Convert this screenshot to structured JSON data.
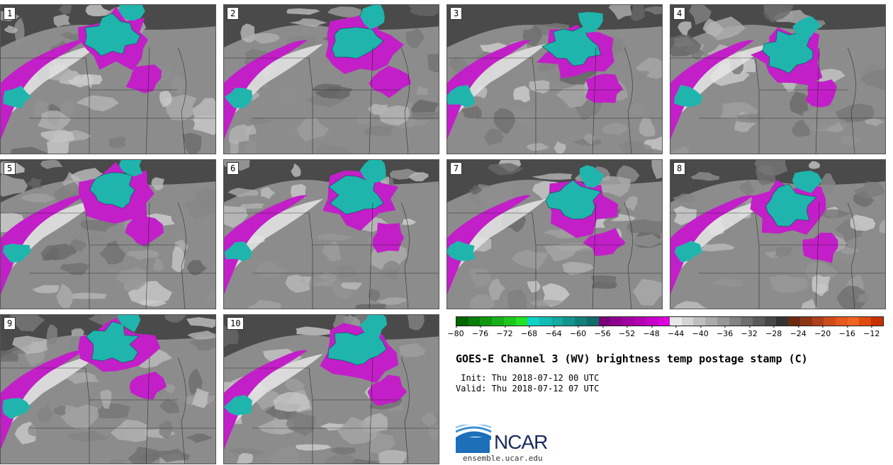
{
  "title": "GOES-E Channel 3 (WV) brightness temp postage stamp (C)",
  "init": " Init: Thu 2018-07-12 00 UTC",
  "valid": "Valid: Thu 2018-07-12 07 UTC",
  "logo_text": "NCAR",
  "logo_url": "ensemble.ucar.edu",
  "panels": [
    {
      "label": "1"
    },
    {
      "label": "2"
    },
    {
      "label": "3"
    },
    {
      "label": "4"
    },
    {
      "label": "5"
    },
    {
      "label": "6"
    },
    {
      "label": "7"
    },
    {
      "label": "8"
    },
    {
      "label": "9"
    },
    {
      "label": "10"
    }
  ],
  "colorbar": {
    "colors": [
      "#006400",
      "#0b7d0b",
      "#119611",
      "#17af17",
      "#1dc81d",
      "#23e123",
      "#0fd2c8",
      "#12bcb6",
      "#14a8a2",
      "#14948f",
      "#137f7b",
      "#116b68",
      "#7a007a",
      "#8d008d",
      "#a000a0",
      "#b300b3",
      "#c600c6",
      "#d900d9",
      "#e8e8e8",
      "#d4d4d4",
      "#bfbfbf",
      "#ababab",
      "#979797",
      "#838383",
      "#6f6f6f",
      "#5b5b5b",
      "#474747",
      "#333333",
      "#6b2a10",
      "#8c3515",
      "#ad4119",
      "#cc4c1c",
      "#e5581e",
      "#f06422",
      "#e04a10",
      "#c83000"
    ],
    "ticks": [
      "−80",
      "−76",
      "−72",
      "−68",
      "−64",
      "−60",
      "−56",
      "−52",
      "−48",
      "−44",
      "−40",
      "−36",
      "−32",
      "−28",
      "−24",
      "−20",
      "−16",
      "−12"
    ],
    "min": -80,
    "max": -10
  },
  "colors": {
    "cyan": "#1fb5ad",
    "magenta": "#c21fc8",
    "background_gray": "#8a8a8a"
  }
}
